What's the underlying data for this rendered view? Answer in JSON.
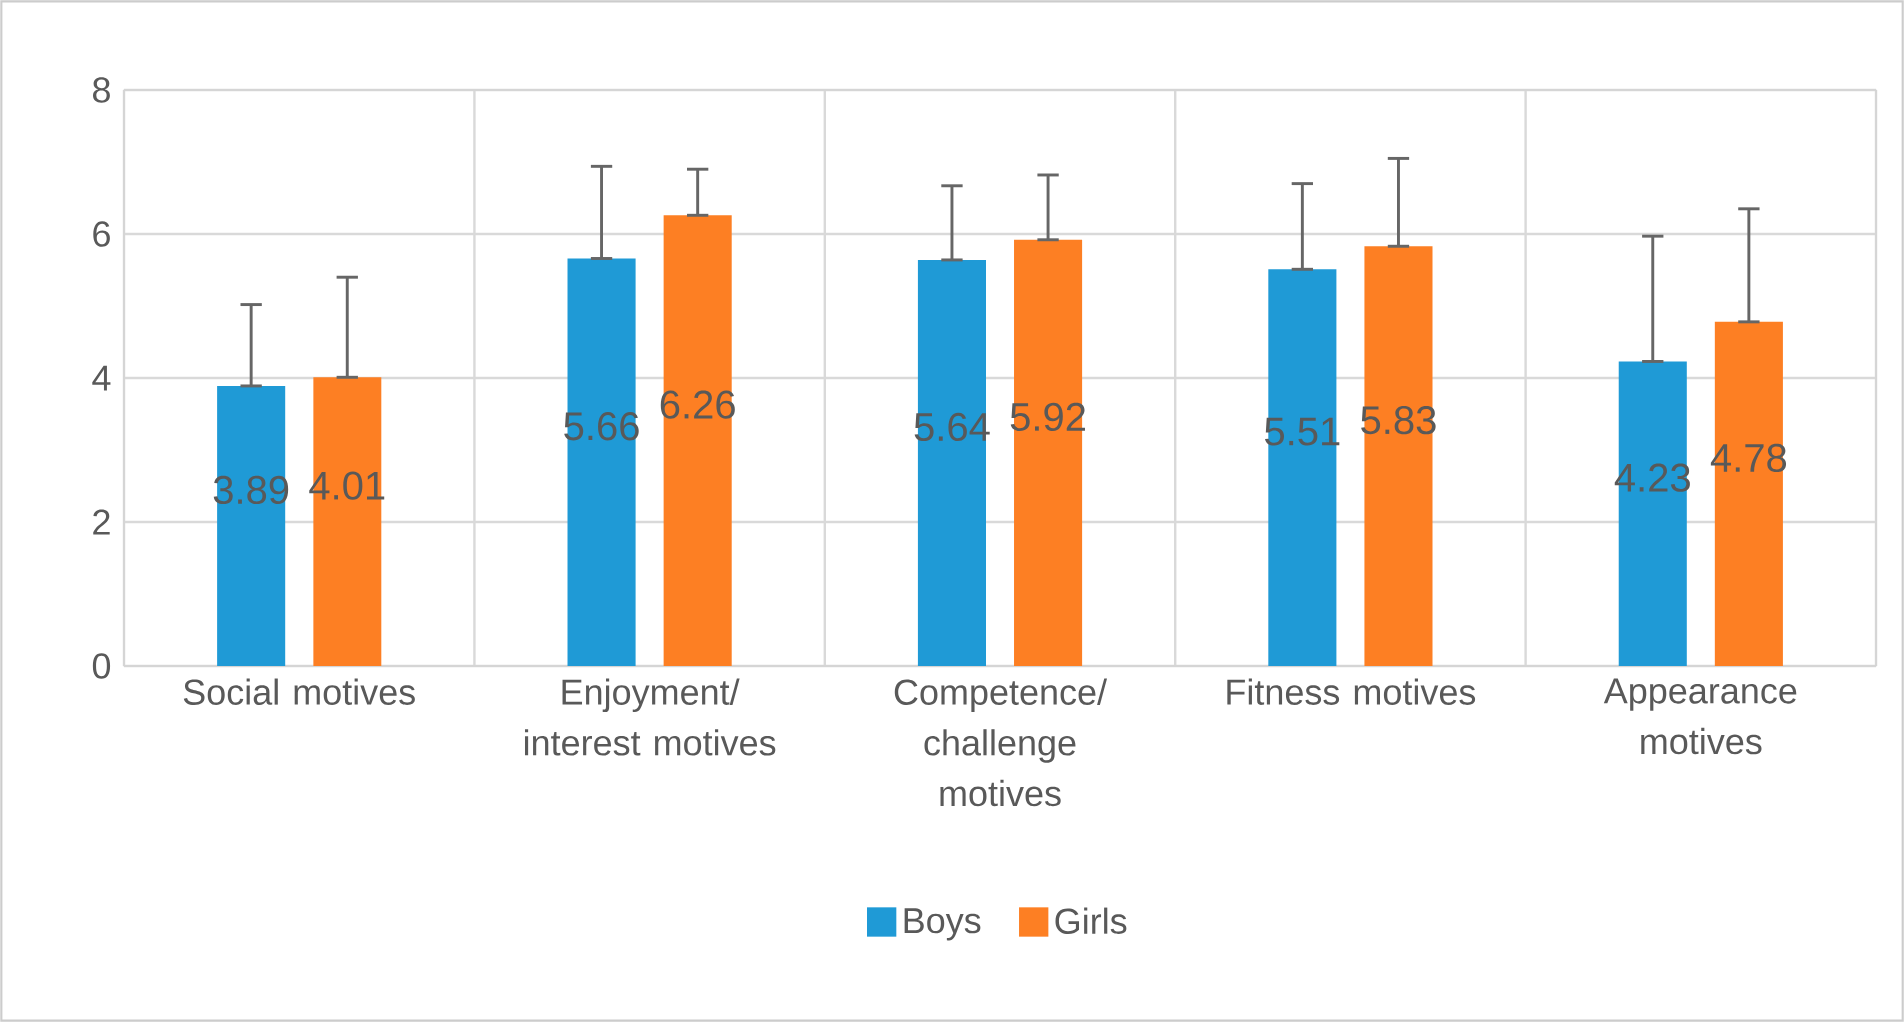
{
  "chart_data": {
    "type": "bar",
    "categories": [
      "Social motives",
      "Enjoyment/ interest motives",
      "Competence/ challenge motives",
      "Fitness motives",
      "Appearance motives"
    ],
    "series": [
      {
        "name": "Boys",
        "color": "#1f9ad6",
        "values": [
          3.89,
          5.66,
          5.64,
          5.51,
          4.23
        ],
        "errors": [
          [
            3.89,
            5.02
          ],
          [
            5.66,
            6.94
          ],
          [
            5.64,
            6.67
          ],
          [
            5.51,
            6.7
          ],
          [
            4.23,
            5.97
          ]
        ]
      },
      {
        "name": "Girls",
        "color": "#fd7f23",
        "values": [
          4.01,
          6.26,
          5.92,
          5.83,
          4.78
        ],
        "errors": [
          [
            4.01,
            5.4
          ],
          [
            6.26,
            6.9
          ],
          [
            5.92,
            6.82
          ],
          [
            5.83,
            7.05
          ],
          [
            4.78,
            6.35
          ]
        ]
      }
    ],
    "ylim": [
      0,
      8
    ],
    "yticks": [
      0,
      2,
      4,
      6,
      8
    ],
    "grid": true,
    "legend": "bottom",
    "data_labels": true
  }
}
